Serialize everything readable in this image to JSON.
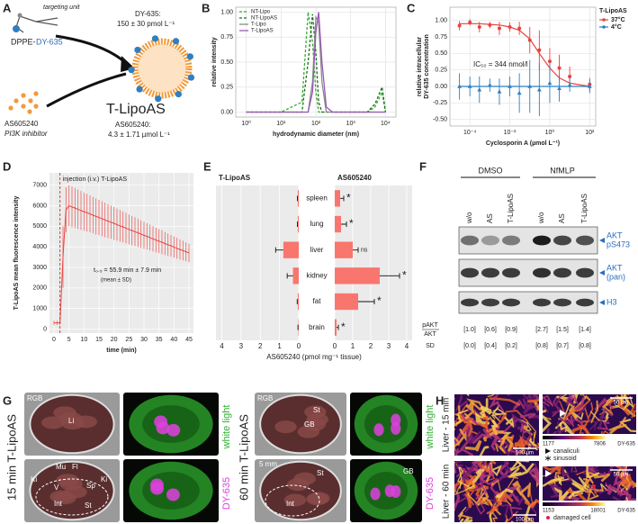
{
  "panel_labels": [
    "A",
    "B",
    "C",
    "D",
    "E",
    "F",
    "G",
    "H"
  ],
  "schematic": {
    "targeting": "targeting unit",
    "lipid": "DPPE-",
    "dye": "DY-635",
    "drug": "AS605240",
    "drug_class": "PI3K inhibitor",
    "dye_conc_label": "DY-635:",
    "dye_conc": "150 ± 30 pmol L⁻¹",
    "product": "T-LipoAS",
    "drug_conc_label": "AS605240:",
    "drug_conc": "4.3 ± 1.71 µmol L⁻¹"
  },
  "chart_data": [
    {
      "type": "line",
      "xlabel": "hydrodynamic diameter (nm)",
      "ylabel": "relative intensity",
      "x_log": true,
      "x": [
        1,
        10,
        40,
        60,
        80,
        100,
        120,
        150,
        200,
        300,
        1000,
        3000,
        5000,
        8000,
        10000
      ],
      "series": [
        {
          "name": "NT-Lipo",
          "color": "#3aaa35",
          "dashed": true,
          "values": [
            0,
            0,
            0.1,
            1.0,
            0.7,
            0.2,
            0,
            0,
            0,
            0,
            0,
            0,
            0.05,
            0.2,
            0
          ]
        },
        {
          "name": "NT-LipoAS",
          "color": "#1b6e1b",
          "dashed": true,
          "values": [
            0,
            0,
            0,
            0.5,
            0.98,
            0.6,
            0.1,
            0,
            0,
            0,
            0,
            0,
            0.08,
            0.25,
            0
          ]
        },
        {
          "name": "T-Lipo",
          "color": "#8a8a8a",
          "dashed": false,
          "values": [
            0,
            0,
            0,
            0,
            0.3,
            0.95,
            0.9,
            0.3,
            0,
            0,
            0,
            0,
            0,
            0,
            0
          ]
        },
        {
          "name": "T-LipoAS",
          "color": "#9b59b6",
          "dashed": false,
          "values": [
            0,
            0,
            0,
            0,
            0.2,
            0.8,
            1.0,
            0.5,
            0.05,
            0,
            0,
            0,
            0,
            0,
            0
          ]
        }
      ],
      "xlim": [
        0.5,
        20000
      ],
      "xticks": [
        {
          "value": 1,
          "label": "10⁰"
        },
        {
          "value": 10,
          "label": "10¹"
        },
        {
          "value": 100,
          "label": "10²"
        },
        {
          "value": 1000,
          "label": "10³"
        },
        {
          "value": 10000,
          "label": "10⁴"
        }
      ],
      "ylim": [
        -0.05,
        1.05
      ],
      "yticks": [
        {
          "value": 0,
          "label": "0.00"
        },
        {
          "value": 0.25,
          "label": "0.25"
        },
        {
          "value": 0.5,
          "label": "0.50"
        },
        {
          "value": 0.75,
          "label": "0.75"
        },
        {
          "value": 1,
          "label": "1.00"
        }
      ],
      "grid": true,
      "legend": "upper left"
    },
    {
      "type": "scatter",
      "xlabel": "Cyclosporin A (µmol L⁻¹)",
      "ylabel": [
        "relative intracellular",
        "DY-635 concentration"
      ],
      "x_log": true,
      "x": [
        3e-05,
        0.0001,
        0.0003,
        0.001,
        0.003,
        0.01,
        0.03,
        0.1,
        0.3,
        1,
        3,
        10,
        100
      ],
      "legend_title": "T-LipoAS",
      "legend": "right",
      "series": [
        {
          "name": "37°C",
          "color": "#e8433f",
          "marker": "circle",
          "values": [
            0.92,
            0.97,
            0.9,
            0.93,
            0.88,
            0.9,
            0.88,
            0.7,
            0.55,
            0.38,
            0.28,
            0.15,
            0.03
          ],
          "errors": [
            0.07,
            0.05,
            0.08,
            0.05,
            0.1,
            0.07,
            0.1,
            0.2,
            0.3,
            0.2,
            0.2,
            0.15,
            0.1
          ],
          "fit": [
            0.95,
            0.95,
            0.95,
            0.94,
            0.93,
            0.9,
            0.85,
            0.72,
            0.5,
            0.28,
            0.13,
            0.05,
            0.0
          ]
        },
        {
          "name": "4°C",
          "color": "#2f7fc1",
          "marker": "triangle",
          "values": [
            0,
            0,
            -0.05,
            0.02,
            -0.08,
            0,
            -0.1,
            0,
            -0.05,
            0.05,
            -0.03,
            0.02,
            0
          ],
          "errors": [
            0.2,
            0.15,
            0.2,
            0.1,
            0.2,
            0.15,
            0.3,
            0.4,
            0.4,
            0.3,
            0.2,
            0.1,
            0.1
          ],
          "fit": [
            0,
            0,
            0,
            0,
            0,
            0,
            0,
            0,
            0,
            0,
            0,
            0,
            0
          ]
        }
      ],
      "annotation": "IC₅₀ = 344 nmol/l",
      "xlim": [
        1e-05,
        200
      ],
      "xticks": [
        {
          "value": 0.0001,
          "label": "10⁻⁴"
        },
        {
          "value": 0.01,
          "label": "10⁻²"
        },
        {
          "value": 1,
          "label": "10⁰"
        },
        {
          "value": 100,
          "label": "10²"
        }
      ],
      "ylim": [
        -0.6,
        1.2
      ],
      "yticks": [
        {
          "value": -0.5,
          "label": "-0.50"
        },
        {
          "value": -0.25,
          "label": "-0.25"
        },
        {
          "value": 0,
          "label": "0.00"
        },
        {
          "value": 0.25,
          "label": "0.25"
        },
        {
          "value": 0.5,
          "label": "0.50"
        },
        {
          "value": 0.75,
          "label": "0.75"
        },
        {
          "value": 1,
          "label": "1.00"
        }
      ],
      "grid": true
    },
    {
      "type": "area",
      "xlabel": "time (min)",
      "ylabel": "T-LipoAS mean fluorescence intensity",
      "color": "#e8433f",
      "x": [
        0,
        1,
        2,
        3,
        4,
        5,
        6,
        7,
        8,
        9,
        10,
        11,
        12,
        13,
        14,
        15,
        16,
        17,
        18,
        19,
        20,
        21,
        22,
        23,
        24,
        25,
        26,
        27,
        28,
        29,
        30,
        31,
        32,
        33,
        34,
        35,
        36,
        37,
        38,
        39,
        40,
        41,
        42,
        43,
        44,
        45
      ],
      "values": [
        300,
        300,
        300,
        3500,
        5800,
        6000,
        5940,
        5890,
        5830,
        5770,
        5710,
        5660,
        5600,
        5540,
        5480,
        5430,
        5370,
        5310,
        5250,
        5200,
        5140,
        5080,
        5020,
        4970,
        4910,
        4850,
        4790,
        4740,
        4680,
        4620,
        4560,
        4510,
        4450,
        4390,
        4330,
        4280,
        4220,
        4160,
        4100,
        4050,
        3990,
        3930,
        3870,
        3820,
        3760,
        3700
      ],
      "errors": [
        100,
        100,
        100,
        1500,
        1100,
        1000,
        990,
        970,
        960,
        950,
        930,
        920,
        900,
        890,
        880,
        860,
        850,
        840,
        820,
        810,
        800,
        780,
        770,
        750,
        740,
        730,
        710,
        700,
        690,
        670,
        660,
        640,
        630,
        620,
        600,
        590,
        580,
        560,
        550,
        530,
        520,
        510,
        490,
        480,
        460,
        450
      ],
      "injection_time": 2,
      "annotations": [
        "injection (i.v.) T-LipoAS",
        "t₀.₅ = 55.9 min ± 7.9 min",
        "(mean ± SD)"
      ],
      "xlim": [
        -1.5,
        46.5
      ],
      "xticks": [
        0,
        5,
        10,
        15,
        20,
        25,
        30,
        35,
        40,
        45
      ],
      "ylim": [
        -200,
        7600
      ],
      "yticks": [
        0,
        1000,
        2000,
        3000,
        4000,
        5000,
        6000,
        7000
      ],
      "grid": true
    },
    {
      "type": "bar",
      "xlabel": "AS605240 (pmol mg⁻¹ tissue)",
      "categories": [
        "spleen",
        "lung",
        "liver",
        "kidney",
        "fat",
        "brain"
      ],
      "series": [
        {
          "name": "T-LipoAS",
          "color": "#f8766d",
          "values": [
            0.05,
            0.05,
            0.8,
            0.3,
            0.05,
            0.02
          ],
          "errors": [
            0.02,
            0.02,
            0.4,
            0.3,
            0.03,
            0.02
          ]
        },
        {
          "name": "AS605240",
          "color": "#f8766d",
          "values": [
            0.3,
            0.35,
            1.0,
            2.5,
            1.3,
            0.1
          ],
          "errors": [
            0.2,
            0.3,
            0.3,
            1.1,
            0.9,
            0.1
          ],
          "notes": [
            "*",
            "*",
            "ns",
            "*",
            "*",
            "*"
          ]
        }
      ],
      "xlim": [
        0,
        4.3
      ],
      "xticks": [
        0,
        1,
        2,
        3,
        4
      ],
      "grid": true
    }
  ],
  "blot": {
    "groups": [
      "DMSO",
      "NfMLP"
    ],
    "lanes": [
      "w/o",
      "AS",
      "T-LipoAS",
      "w/o",
      "AS",
      "T-LipoAS"
    ],
    "bands": [
      [
        "AKT",
        "pS473"
      ],
      [
        "AKT",
        "(pan)"
      ],
      [
        "H3"
      ]
    ],
    "ratio_top": "pAKT",
    "ratio_bottom": "AKT",
    "ratio_values": [
      "[1.0]",
      "[0.6]",
      "[0.9]",
      "[2.7]",
      "[1.5]",
      "[1.4]"
    ],
    "sd_label": "SD",
    "sd_values": [
      "[0.0]",
      "[0.4]",
      "[0.2]",
      "[0.8]",
      "[0.7]",
      "[0.8]"
    ]
  },
  "images_g": {
    "left_title": "15 min T-LipoAS",
    "right_title": "60 min T-LipoAS",
    "channel_light": "white light",
    "channel_dye": "DY-635",
    "left_labels": [
      "RGB",
      "Li",
      "Mu",
      "Fl",
      "Ki",
      "V",
      "Sp",
      "Ki",
      "Int",
      "St"
    ],
    "right_labels": [
      "RGB",
      "St",
      "GB",
      "5 mm",
      "St",
      "Int",
      "GB"
    ]
  },
  "images_h": {
    "rows": [
      {
        "title": "Liver - 15 min",
        "scale_left": "100 µm",
        "scale_right": "50 µm",
        "cmin": 1177,
        "cmax": 7806,
        "channel": "DY-635",
        "legend": [
          "canaliculi",
          "sinusoid"
        ]
      },
      {
        "title": "Liver - 60 min",
        "scale_left": "100 µm",
        "scale_right": "50 µm",
        "cmin": 1153,
        "cmax": 18001,
        "channel": "DY-635",
        "legend": [
          "damaged cell"
        ]
      }
    ]
  }
}
